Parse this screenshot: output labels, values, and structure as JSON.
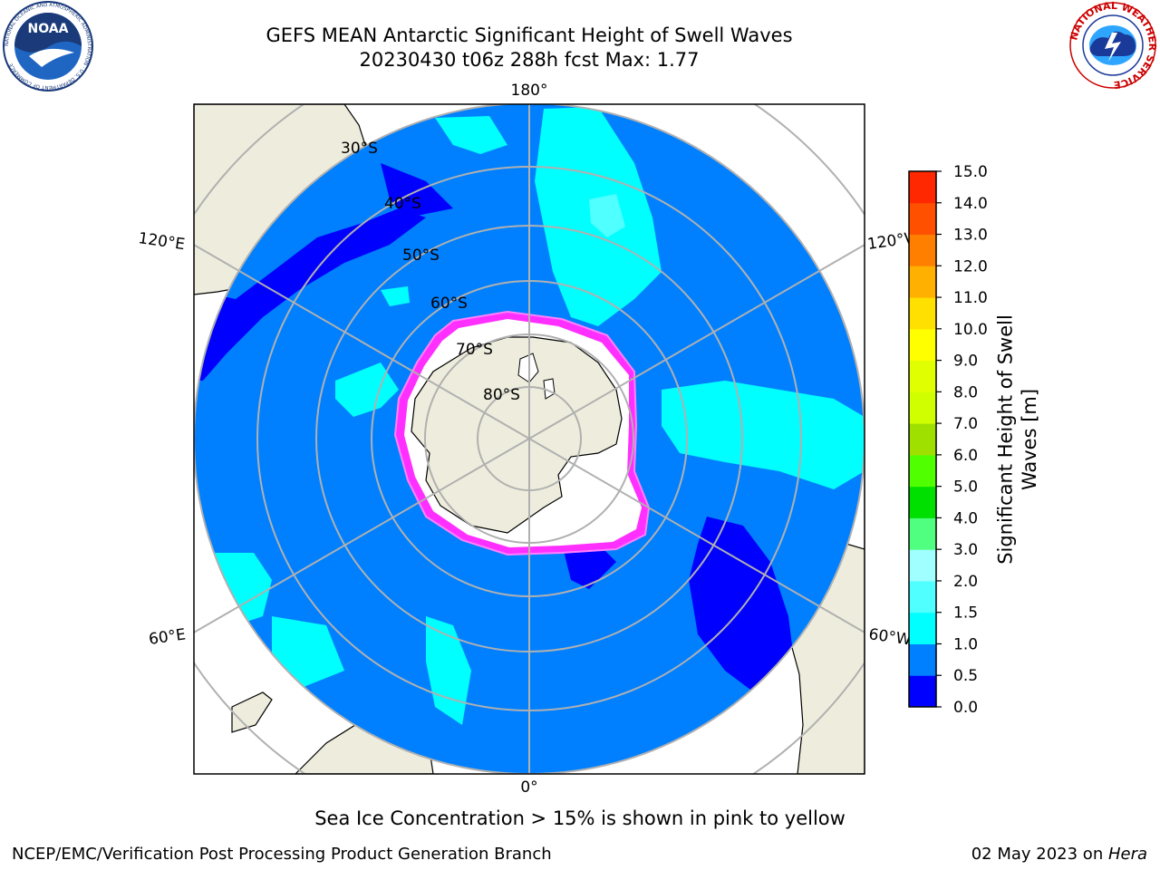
{
  "title_line1": "GEFS MEAN Antarctic Significant Height of Swell Waves",
  "title_line2": "20230430 t06z 288h fcst   Max: 1.77",
  "logos": {
    "left": {
      "icon": "noaa-logo",
      "text": "NOAA",
      "ring_text": "NATIONAL OCEANIC AND ATMOSPHERIC ADMINISTRATION · U.S. DEPARTMENT OF COMMERCE"
    },
    "right": {
      "icon": "national-weather-service-logo",
      "ring_text": "NATIONAL WEATHER SERVICE"
    }
  },
  "map": {
    "projection": "south-polar-stereographic",
    "longitude_labels": {
      "top": "180°",
      "bottom": "0°",
      "upper_left": "120°E",
      "upper_right": "120°W",
      "lower_left": "60°E",
      "lower_right": "60°W"
    },
    "latitude_labels": [
      "30°S",
      "40°S",
      "50°S",
      "60°S",
      "70°S",
      "80°S"
    ],
    "colors": {
      "land": "#eeeddd",
      "ocean_primary": "#0080ff",
      "ocean_low": "#0000ff",
      "ocean_high": "#00ffff",
      "sea_ice": "#ff30ff",
      "ice_shelf": "#ffffff",
      "grid": "#b0b0b0"
    }
  },
  "colorbar": {
    "label": "Significant Height of Swell Waves [m]",
    "ticks": [
      "0.0",
      "0.5",
      "1.0",
      "1.5",
      "2.0",
      "3.0",
      "4.0",
      "5.0",
      "6.0",
      "7.0",
      "8.0",
      "9.0",
      "10.0",
      "11.0",
      "12.0",
      "13.0",
      "14.0",
      "15.0"
    ],
    "colors": [
      "#0000ff",
      "#0080ff",
      "#00ffff",
      "#50ffff",
      "#a0ffff",
      "#50ff80",
      "#00e000",
      "#50ff00",
      "#a0e000",
      "#d0ff00",
      "#e0ff00",
      "#ffff00",
      "#ffe000",
      "#ffb000",
      "#ff8000",
      "#ff5000",
      "#ff2800",
      "#ff0000"
    ]
  },
  "subtitle": "Sea Ice Concentration > 15% is shown in pink to yellow",
  "footer": {
    "left": "NCEP/EMC/Verification Post Processing Product Generation Branch",
    "right_date": "02 May 2023 on ",
    "right_host": "Hera"
  }
}
